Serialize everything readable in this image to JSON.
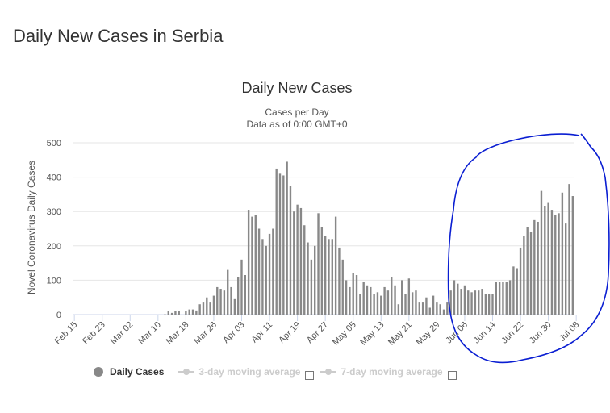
{
  "page": {
    "title": "Daily New Cases in Serbia"
  },
  "chart_data": {
    "type": "bar",
    "title": "Daily New Cases",
    "subtitle": [
      "Cases per Day",
      "Data as of 0:00 GMT+0"
    ],
    "ylabel": "Novel Coronavirus Daily Cases",
    "ylim": [
      0,
      500
    ],
    "yticks": [
      0,
      100,
      200,
      300,
      400,
      500
    ],
    "xticks": [
      "Feb 15",
      "Feb 23",
      "Mar 02",
      "Mar 10",
      "Mar 18",
      "Mar 26",
      "Apr 03",
      "Apr 11",
      "Apr 19",
      "Apr 27",
      "May 05",
      "May 13",
      "May 21",
      "May 29",
      "Jun 06",
      "Jun 14",
      "Jun 22",
      "Jun 30",
      "Jul 08"
    ],
    "start_date": "Feb 15",
    "grid": true,
    "legend_position": "bottom-left",
    "bar_color": "#888888",
    "series": [
      {
        "name": "Daily Cases",
        "values": [
          0,
          0,
          0,
          0,
          0,
          0,
          0,
          0,
          0,
          0,
          0,
          0,
          0,
          0,
          0,
          0,
          0,
          0,
          0,
          0,
          0,
          0,
          0,
          0,
          0,
          0,
          1,
          10,
          5,
          10,
          10,
          0,
          10,
          15,
          15,
          12,
          30,
          35,
          50,
          35,
          55,
          80,
          75,
          70,
          130,
          80,
          45,
          110,
          160,
          115,
          305,
          285,
          290,
          250,
          220,
          200,
          235,
          250,
          425,
          410,
          405,
          445,
          375,
          300,
          320,
          310,
          260,
          210,
          160,
          200,
          295,
          255,
          230,
          220,
          220,
          285,
          195,
          160,
          100,
          80,
          120,
          115,
          60,
          95,
          85,
          80,
          60,
          65,
          55,
          80,
          70,
          110,
          85,
          30,
          100,
          60,
          105,
          65,
          70,
          35,
          35,
          50,
          20,
          55,
          35,
          30,
          15,
          35,
          70,
          100,
          90,
          75,
          85,
          70,
          65,
          70,
          70,
          75,
          60,
          60,
          60,
          95,
          95,
          95,
          95,
          100,
          140,
          135,
          195,
          230,
          255,
          240,
          275,
          270,
          360,
          315,
          325,
          305,
          290,
          295,
          355,
          265,
          380,
          345
        ]
      }
    ]
  },
  "legend": {
    "items": [
      {
        "label": "Daily Cases"
      },
      {
        "label": "3-day moving average"
      },
      {
        "label": "7-day moving average"
      }
    ]
  }
}
